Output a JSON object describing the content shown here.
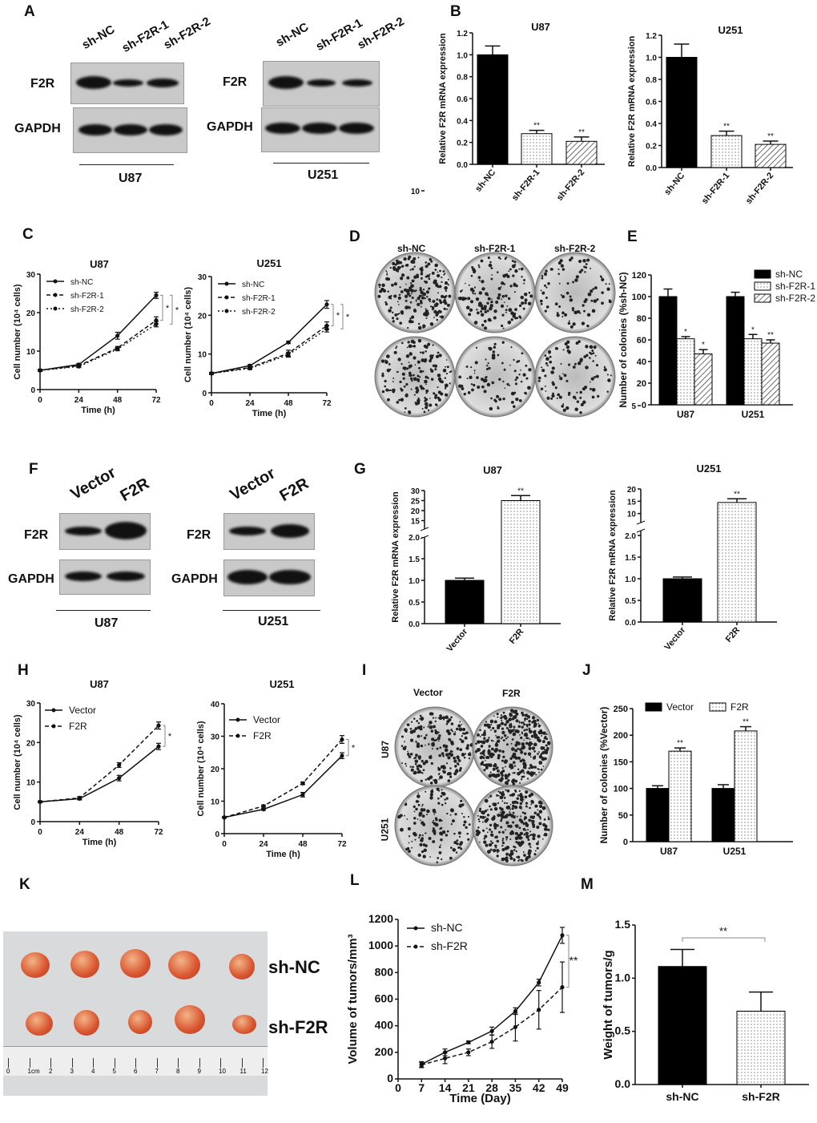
{
  "panel_labels": [
    "A",
    "B",
    "C",
    "D",
    "E",
    "F",
    "G",
    "H",
    "I",
    "J",
    "K",
    "L",
    "M"
  ],
  "blots_A": {
    "lanes": [
      "sh-NC",
      "sh-F2R-1",
      "sh-F2R-2"
    ],
    "rows": [
      "F2R",
      "GAPDH"
    ],
    "cells": [
      "U87",
      "U251"
    ]
  },
  "blots_F": {
    "lanes": [
      "Vector",
      "F2R"
    ],
    "rows": [
      "F2R",
      "GAPDH"
    ],
    "cells": [
      "U87",
      "U251"
    ]
  },
  "dishes_D": {
    "columns": [
      "sh-NC",
      "sh-F2R-1",
      "sh-F2R-2"
    ]
  },
  "dishes_I": {
    "columns": [
      "Vector",
      "F2R"
    ],
    "rows": [
      "U87",
      "U251"
    ]
  },
  "photo_K": {
    "rows": [
      "sh-NC",
      "sh-F2R"
    ],
    "ruler": [
      "0",
      "1cm",
      "2",
      "3",
      "4",
      "5",
      "6",
      "7",
      "8",
      "9",
      "10",
      "11",
      "12"
    ]
  },
  "chart_data": [
    {
      "id": "B1",
      "type": "bar",
      "title": "U87",
      "ylabel": "Relative F2R mRNA expression",
      "categories": [
        "sh-NC",
        "sh-F2R-1",
        "sh-F2R-2"
      ],
      "values": [
        1.0,
        0.28,
        0.21
      ],
      "errors": [
        0.08,
        0.03,
        0.04
      ],
      "sig": [
        "",
        "**",
        "**"
      ],
      "ylim": [
        0,
        1.2
      ],
      "yticks": [
        "0.0",
        "0.2",
        "0.4",
        "0.6",
        "0.8",
        "1.0",
        "1.2"
      ],
      "fills": [
        "black",
        "dots",
        "hatch"
      ]
    },
    {
      "id": "B2",
      "type": "bar",
      "title": "U251",
      "ylabel": "Relative F2R mRNA expression",
      "categories": [
        "sh-NC",
        "sh-F2R-1",
        "sh-F2R-2"
      ],
      "values": [
        1.0,
        0.29,
        0.21
      ],
      "errors": [
        0.12,
        0.04,
        0.03
      ],
      "sig": [
        "",
        "**",
        "**"
      ],
      "ylim": [
        0,
        1.2
      ],
      "yticks": [
        "0.0",
        "0.2",
        "0.4",
        "0.6",
        "0.8",
        "1.0",
        "1.2"
      ],
      "fills": [
        "black",
        "dots",
        "hatch"
      ]
    },
    {
      "id": "C1",
      "type": "line",
      "title": "U87",
      "xlabel": "Time (h)",
      "ylabel": "Cell number (10⁴ cells)",
      "x": [
        0,
        24,
        48,
        72
      ],
      "xticks": [
        "0",
        "24",
        "48",
        "72"
      ],
      "ylim": [
        0,
        30
      ],
      "yticks": [
        "0",
        "10",
        "20",
        "30"
      ],
      "series": [
        {
          "name": "sh-NC",
          "values": [
            5,
            6.5,
            14,
            24.5
          ],
          "errors": [
            0.3,
            0.3,
            0.9,
            0.8
          ]
        },
        {
          "name": "sh-F2R-1",
          "values": [
            5,
            6.2,
            10.8,
            18
          ],
          "errors": [
            0.2,
            0.3,
            0.4,
            0.9
          ]
        },
        {
          "name": "sh-F2R-2",
          "values": [
            5,
            6,
            10.5,
            17
          ],
          "errors": [
            0.2,
            0.3,
            0.4,
            0.7
          ]
        }
      ],
      "sig": [
        "*",
        "*"
      ]
    },
    {
      "id": "C2",
      "type": "line",
      "title": "U251",
      "xlabel": "Time (h)",
      "ylabel": "Cell number (10⁴ cells)",
      "x": [
        0,
        24,
        48,
        72
      ],
      "xticks": [
        "0",
        "24",
        "48",
        "72"
      ],
      "ylim": [
        0,
        30
      ],
      "yticks": [
        "0",
        "10",
        "20",
        "30"
      ],
      "series": [
        {
          "name": "sh-NC",
          "values": [
            5,
            7,
            13,
            22.8
          ],
          "errors": [
            0.3,
            0.3,
            0.3,
            1
          ]
        },
        {
          "name": "sh-F2R-1",
          "values": [
            5,
            6.5,
            10.2,
            17.3
          ],
          "errors": [
            0.2,
            0.3,
            0.8,
            1
          ]
        },
        {
          "name": "sh-F2R-2",
          "values": [
            5,
            6.3,
            9.8,
            16.5
          ],
          "errors": [
            0.2,
            0.3,
            0.6,
            0.8
          ]
        }
      ],
      "sig": [
        "*",
        "*"
      ]
    },
    {
      "id": "E",
      "type": "bar",
      "ylabel": "Number of colonies (%sh-NC)",
      "categories": [
        "U87",
        "U251"
      ],
      "series": [
        {
          "name": "sh-NC",
          "values": [
            100,
            100
          ],
          "errors": [
            7,
            4
          ],
          "sig": [
            "",
            ""
          ],
          "fill": "black"
        },
        {
          "name": "sh-F2R-1",
          "values": [
            61,
            61
          ],
          "errors": [
            2,
            4
          ],
          "sig": [
            "*",
            "*"
          ],
          "fill": "dots"
        },
        {
          "name": "sh-F2R-2",
          "values": [
            47,
            57
          ],
          "errors": [
            4,
            3
          ],
          "sig": [
            "*",
            "**"
          ],
          "fill": "hatch"
        }
      ],
      "ylim": [
        0,
        120
      ],
      "yticks": [
        "0",
        "20",
        "40",
        "60",
        "80",
        "100",
        "120"
      ],
      "legend": "top-right"
    },
    {
      "id": "G1",
      "type": "bar",
      "title": "U87",
      "ylabel": "Relative F2R mRNA expression",
      "categories": [
        "Vector",
        "F2R"
      ],
      "values": [
        1.0,
        25
      ],
      "errors": [
        0.05,
        2.5
      ],
      "sig": [
        "",
        "**"
      ],
      "ylim": [
        0,
        30
      ],
      "axis_break": [
        2,
        10
      ],
      "yticks": [
        "0.0",
        "0.5",
        "1.0",
        "1.5",
        "2.0",
        "10",
        "15",
        "20",
        "25",
        "30"
      ],
      "fills": [
        "black",
        "dots"
      ]
    },
    {
      "id": "G2",
      "type": "bar",
      "title": "U251",
      "ylabel": "Relative F2R mRNA expression",
      "categories": [
        "Vector",
        "F2R"
      ],
      "values": [
        1.0,
        14.5
      ],
      "errors": [
        0.04,
        1.5
      ],
      "sig": [
        "",
        "**"
      ],
      "ylim": [
        0,
        20
      ],
      "axis_break": [
        2,
        5
      ],
      "yticks": [
        "0.0",
        "0.5",
        "1.0",
        "1.5",
        "2.0",
        "5",
        "10",
        "15",
        "20"
      ],
      "fills": [
        "black",
        "dots"
      ]
    },
    {
      "id": "H1",
      "type": "line",
      "title": "U87",
      "xlabel": "Time (h)",
      "ylabel": "Cell number (10⁴ cells)",
      "x": [
        0,
        24,
        48,
        72
      ],
      "xticks": [
        "0",
        "24",
        "48",
        "72"
      ],
      "ylim": [
        0,
        30
      ],
      "yticks": [
        "0",
        "10",
        "20",
        "30"
      ],
      "series": [
        {
          "name": "Vector",
          "values": [
            5,
            5.8,
            11,
            19
          ],
          "errors": [
            0.2,
            0.3,
            0.7,
            0.8
          ]
        },
        {
          "name": "F2R",
          "values": [
            5,
            6,
            14.3,
            24.3
          ],
          "errors": [
            0.2,
            0.3,
            0.6,
            0.9
          ]
        }
      ],
      "sig": [
        "*"
      ]
    },
    {
      "id": "H2",
      "type": "line",
      "title": "U251",
      "xlabel": "Time (h)",
      "ylabel": "Cell number (10⁴ cells)",
      "x": [
        0,
        24,
        48,
        72
      ],
      "xticks": [
        "0",
        "24",
        "48",
        "72"
      ],
      "ylim": [
        0,
        40
      ],
      "yticks": [
        "0",
        "10",
        "20",
        "30",
        "40"
      ],
      "series": [
        {
          "name": "Vector",
          "values": [
            5,
            7.5,
            12,
            24
          ],
          "errors": [
            0.2,
            0.3,
            0.7,
            0.9
          ]
        },
        {
          "name": "F2R",
          "values": [
            5,
            8.5,
            15.5,
            29
          ],
          "errors": [
            0.2,
            0.3,
            0.4,
            1.2
          ]
        }
      ],
      "sig": [
        "*"
      ]
    },
    {
      "id": "J",
      "type": "bar",
      "ylabel": "Number of colonies (%Vector)",
      "categories": [
        "U87",
        "U251"
      ],
      "series": [
        {
          "name": "Vector",
          "values": [
            100,
            100
          ],
          "errors": [
            5,
            7
          ],
          "sig": [
            "",
            ""
          ],
          "fill": "black"
        },
        {
          "name": "F2R",
          "values": [
            170,
            208
          ],
          "errors": [
            6,
            8
          ],
          "sig": [
            "**",
            "**"
          ],
          "fill": "dots"
        }
      ],
      "ylim": [
        0,
        250
      ],
      "yticks": [
        "0",
        "50",
        "100",
        "150",
        "200",
        "250"
      ],
      "legend": "top"
    },
    {
      "id": "L",
      "type": "line",
      "xlabel": "Time (Day)",
      "ylabel": "Volume of tumors/mm³",
      "x": [
        7,
        14,
        21,
        28,
        35,
        42,
        49
      ],
      "xticks": [
        "0",
        "7",
        "14",
        "21",
        "28",
        "35",
        "42",
        "49"
      ],
      "ylim": [
        0,
        1200
      ],
      "yticks": [
        "0",
        "200",
        "400",
        "600",
        "800",
        "1000",
        "1200"
      ],
      "series": [
        {
          "name": "sh-NC",
          "values": [
            110,
            200,
            275,
            360,
            510,
            725,
            1080
          ],
          "errors": [
            20,
            25,
            10,
            30,
            25,
            25,
            60
          ]
        },
        {
          "name": "sh-F2R",
          "values": [
            105,
            155,
            200,
            280,
            390,
            520,
            690
          ],
          "errors": [
            20,
            40,
            25,
            50,
            105,
            145,
            190
          ]
        }
      ],
      "sig": [
        "**"
      ]
    },
    {
      "id": "M",
      "type": "bar",
      "ylabel": "Weight of tumors/g",
      "categories": [
        "sh-NC",
        "sh-F2R"
      ],
      "values": [
        1.11,
        0.69
      ],
      "errors": [
        0.16,
        0.18
      ],
      "sig": [
        "**"
      ],
      "ylim": [
        0,
        1.5
      ],
      "yticks": [
        "0.0",
        "0.5",
        "1.0",
        "1.5"
      ],
      "fills": [
        "black",
        "dots"
      ]
    }
  ]
}
